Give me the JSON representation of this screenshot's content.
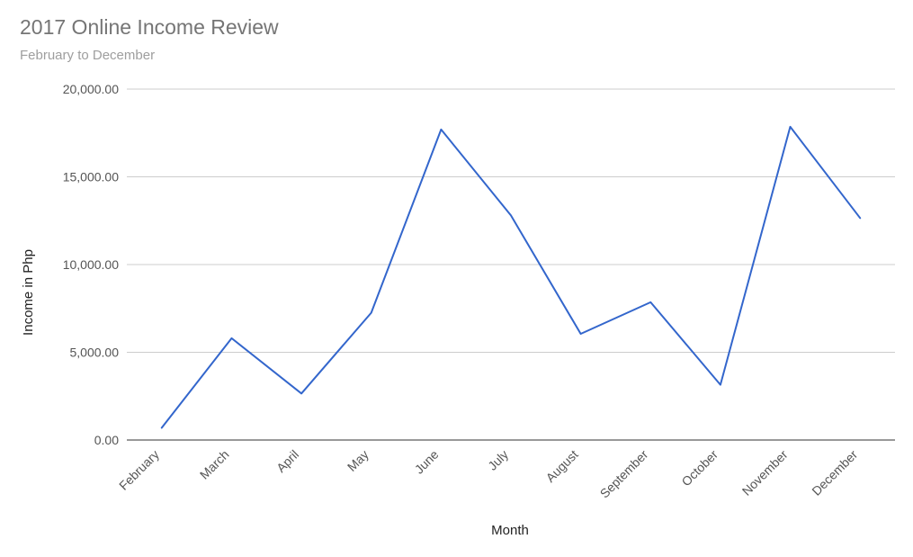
{
  "title": "2017 Online Income Review",
  "subtitle": "February to December",
  "chart_data": {
    "type": "line",
    "categories": [
      "February",
      "March",
      "April",
      "May",
      "June",
      "July",
      "August",
      "September",
      "October",
      "November",
      "December"
    ],
    "series": [
      {
        "values": [
          700,
          5800,
          2650,
          7250,
          17700,
          12800,
          6050,
          7850,
          3150,
          17850,
          12650
        ],
        "color": "#3366cc"
      }
    ],
    "xlabel": "Month",
    "ylabel": "Income in Php",
    "ylim": [
      0,
      20000
    ],
    "yticks": [
      "0.00",
      "5,000.00",
      "10,000.00",
      "15,000.00",
      "20,000.00"
    ],
    "grid": true,
    "legend": "none"
  }
}
